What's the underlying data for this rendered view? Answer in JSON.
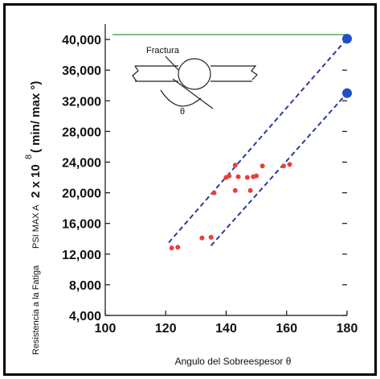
{
  "chart_data": {
    "type": "scatter",
    "xlabel": "Angulo del Sobreespesor θ",
    "ylabel_parts": {
      "lower": "Resistencia a la Fatiga",
      "middle": "PSI MAX A",
      "main": "2 x 10",
      "exponent": "8",
      "bracket": "( min/ max °)"
    },
    "xlim": [
      100,
      180
    ],
    "ylim": [
      4000,
      42000
    ],
    "x_ticks": [
      100,
      120,
      140,
      160,
      180
    ],
    "x_tick_labels": [
      "100",
      "120",
      "140",
      "160",
      "180"
    ],
    "y_ticks": [
      4000,
      8000,
      12000,
      16000,
      20000,
      24000,
      28000,
      32000,
      36000,
      40000
    ],
    "y_tick_labels": [
      "4,000",
      "8,000",
      "12,000",
      "16,000",
      "20,000",
      "24,000",
      "28,000",
      "32,000",
      "36,000",
      "40,000"
    ],
    "points": {
      "color": "#e8403a",
      "x": [
        122,
        124,
        132,
        135,
        136,
        140,
        141,
        143,
        143,
        144,
        147,
        148,
        149,
        150,
        152,
        159,
        161
      ],
      "y": [
        12800,
        12900,
        14100,
        14200,
        20000,
        22000,
        22200,
        23600,
        20300,
        22100,
        22000,
        20300,
        22100,
        22200,
        23500,
        23500,
        23700
      ]
    },
    "bound_lines": [
      {
        "color": "#2b3b9e",
        "x": [
          121,
          180
        ],
        "y": [
          13500,
          40100
        ]
      },
      {
        "color": "#2b3b9e",
        "x": [
          135,
          180
        ],
        "y": [
          13100,
          33000
        ]
      }
    ],
    "endpoints": {
      "color": "#1e4fc8",
      "x": [
        180,
        180
      ],
      "y": [
        40100,
        33000
      ]
    },
    "inset": {
      "label_fracture": "Fractura",
      "label_theta": "θ"
    },
    "top_line_color": "#5fa85a"
  }
}
